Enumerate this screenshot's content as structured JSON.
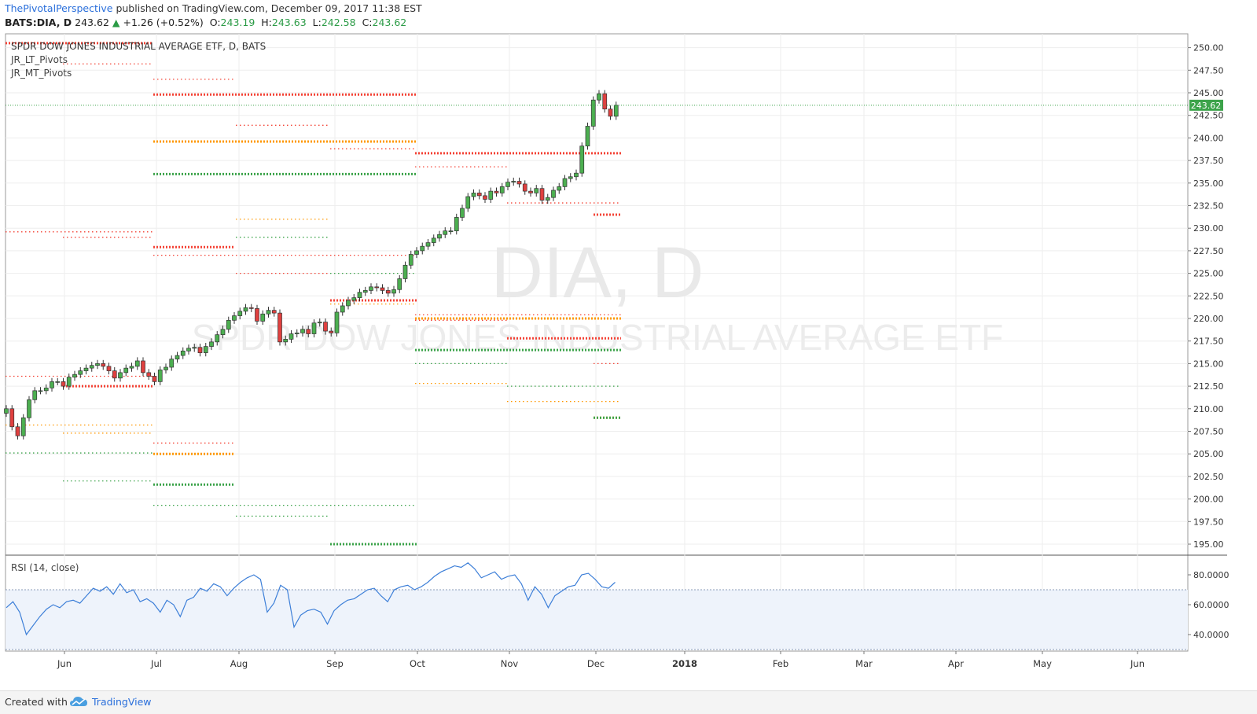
{
  "header": {
    "author": "ThePivotalPerspective",
    "published": "published on TradingView.com, December 09, 2017 11:38 EST",
    "symbol": "BATS:DIA, D",
    "price": "243.62",
    "change": "+1.26 (+0.52%)",
    "o_label": "O:",
    "o": "243.19",
    "h_label": "H:",
    "h": "243.63",
    "l_label": "L:",
    "l": "242.58",
    "c_label": "C:",
    "c": "243.62"
  },
  "legend": {
    "title": "SPDR DOW JONES INDUSTRIAL AVERAGE ETF, D, BATS",
    "indicator1": "JR_LT_Pivots",
    "indicator2": "JR_MT_Pivots"
  },
  "watermark": {
    "symbol": "DIA, D",
    "name": "SPDR DOW JONES INDUSTRIAL AVERAGE ETF"
  },
  "rsi_label": "RSI (14, close)",
  "footer": {
    "created": "Created with",
    "brand": "TradingView"
  },
  "colors": {
    "up": "#4caf50",
    "down": "#e0403f",
    "pivot_red": "#f44336",
    "pivot_orange": "#ff9800",
    "pivot_green": "#3ca34a",
    "rsi_line": "#3d7fd8",
    "rsi_band": "#eef3fb",
    "price_tag": "#3ca34a"
  },
  "chart_data": [
    {
      "type": "candlestick",
      "symbol": "BATS:DIA",
      "interval": "D",
      "x_ticks": [
        "Jun",
        "Jul",
        "Aug",
        "Sep",
        "Oct",
        "Nov",
        "Dec",
        "2018",
        "Feb",
        "Mar",
        "Apr",
        "May",
        "Jun"
      ],
      "y_ticks": [
        "250.00",
        "247.50",
        "245.00",
        "242.50",
        "240.00",
        "237.50",
        "235.00",
        "232.50",
        "230.00",
        "227.50",
        "225.00",
        "222.50",
        "220.00",
        "217.50",
        "215.00",
        "212.50",
        "210.00",
        "207.50",
        "205.00",
        "202.50",
        "200.00",
        "197.50",
        "195.00"
      ],
      "ylim": [
        194,
        251
      ],
      "last_price": 243.62,
      "last_price_label": "243.62",
      "closes": [
        210,
        208,
        207,
        209,
        211,
        212,
        212,
        212.3,
        213,
        213,
        212.5,
        213.5,
        213.8,
        214.2,
        214.5,
        214.8,
        215,
        214.7,
        214.2,
        213.4,
        214,
        214.5,
        214.7,
        215.3,
        214,
        213.6,
        213,
        214.3,
        214.6,
        215.5,
        215.9,
        216.4,
        216.7,
        216.8,
        216.2,
        216.9,
        217.4,
        218.2,
        218.8,
        219.8,
        220.3,
        220.8,
        221.2,
        221.1,
        219.7,
        220.5,
        220.9,
        220.6,
        217.4,
        217.7,
        218.3,
        218.4,
        218.8,
        218.3,
        219.5,
        219.6,
        218.6,
        218.4,
        220.7,
        221.4,
        222,
        222.3,
        222.9,
        223.1,
        223.5,
        223.4,
        223.1,
        222.8,
        223.2,
        224.4,
        225.9,
        227.1,
        227.5,
        228.0,
        228.4,
        228.9,
        229.3,
        229.7,
        229.7,
        231.2,
        232.2,
        233.5,
        233.9,
        233.6,
        233.2,
        234.1,
        233.9,
        234.6,
        235.1,
        235.2,
        234.9,
        234.1,
        233.9,
        234.4,
        233.1,
        233.4,
        234.2,
        234.6,
        235.5,
        235.7,
        236.1,
        239.1,
        241.3,
        244.2,
        244.9,
        243.2,
        242.4,
        243.62
      ],
      "pivot_levels": {
        "red": [
          250.5,
          248.2,
          246.5,
          244.8,
          241.4,
          238.8,
          238.3,
          236.8,
          232.8,
          231.5,
          229.6,
          229.0,
          227.9,
          227.0,
          225.0,
          222.0,
          220.4,
          219.8,
          217.8,
          215.0,
          213.6,
          212.5,
          206.2
        ],
        "orange": [
          239.6,
          231.0,
          221.6,
          220.0,
          212.8,
          210.8,
          209.0,
          208.2,
          207.3,
          205.0
        ],
        "green": [
          236.0,
          229.0,
          225.0,
          216.5,
          215.0,
          212.5,
          209.0,
          205.1,
          202.0,
          201.6,
          199.3,
          198.1,
          195.0
        ]
      }
    },
    {
      "type": "line",
      "name": "RSI (14, close)",
      "y_ticks": [
        "80.0000",
        "60.0000",
        "40.0000"
      ],
      "ylim": [
        30,
        88
      ],
      "bands": [
        70,
        30
      ],
      "values": [
        58,
        62,
        55,
        40,
        46,
        52,
        57,
        60,
        58,
        62,
        63,
        61,
        66,
        71,
        69,
        72,
        67,
        74,
        68,
        70,
        62,
        64,
        61,
        55,
        63,
        60,
        52,
        63,
        65,
        71,
        69,
        74,
        72,
        66,
        71,
        75,
        78,
        80,
        77,
        55,
        61,
        73,
        70,
        45,
        53,
        56,
        57,
        55,
        47,
        56,
        60,
        63,
        64,
        67,
        70,
        71,
        66,
        62,
        70,
        72,
        73,
        70,
        72,
        75,
        79,
        82,
        84,
        86,
        85,
        88,
        84,
        78,
        80,
        82,
        77,
        79,
        80,
        74,
        63,
        72,
        67,
        58,
        66,
        69,
        72,
        73,
        80,
        81,
        77,
        72,
        71,
        75
      ]
    }
  ]
}
